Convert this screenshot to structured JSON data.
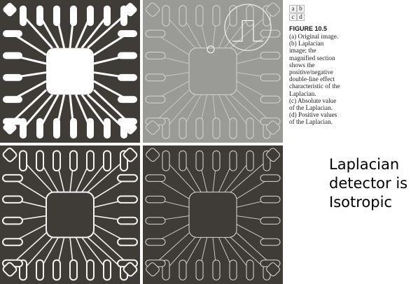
{
  "figure": {
    "position_grid": [
      "a",
      "b",
      "c",
      "d"
    ],
    "title": "FIGURE 10.5",
    "caption_lines": [
      "(a) Original image.",
      "(b) Laplacian",
      "image; the",
      "magnified section",
      "shows the",
      "positive/negative",
      "double-line effect",
      "characteristic of the",
      "Laplacian.",
      "(c) Absolute value",
      "of the Laplacian.",
      "(d) Positive values",
      "of the Laplacian."
    ],
    "panels": [
      {
        "id": "a",
        "name": "original-image",
        "style": "original"
      },
      {
        "id": "b",
        "name": "laplacian-image",
        "style": "laplacian"
      },
      {
        "id": "c",
        "name": "absolute-laplacian-image",
        "style": "absolute"
      },
      {
        "id": "d",
        "name": "positive-laplacian-image",
        "style": "positive"
      }
    ]
  },
  "note": {
    "lines": [
      "Laplacian",
      "detector is",
      "Isotropic"
    ]
  }
}
